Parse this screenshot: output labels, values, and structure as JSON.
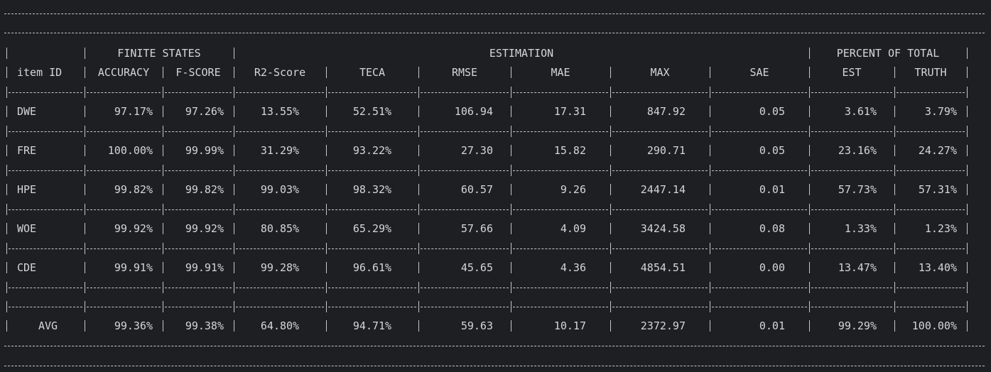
{
  "header_groups": {
    "finite_states": "FINITE STATES",
    "estimation": "ESTIMATION",
    "percent_of_total": "PERCENT OF TOTAL"
  },
  "columns": [
    "item ID",
    "ACCURACY",
    "F-SCORE",
    "R2-Score",
    "TECA",
    "RMSE",
    "MAE",
    "MAX",
    "SAE",
    "EST",
    "TRUTH"
  ],
  "rows": [
    [
      "DWE",
      "97.17%",
      "97.26%",
      "13.55%",
      "52.51%",
      "106.94",
      "17.31",
      "847.92",
      "0.05",
      "3.61%",
      "3.79%"
    ],
    [
      "FRE",
      "100.00%",
      "99.99%",
      "31.29%",
      "93.22%",
      "27.30",
      "15.82",
      "290.71",
      "0.05",
      "23.16%",
      "24.27%"
    ],
    [
      "HPE",
      "99.82%",
      "99.82%",
      "99.03%",
      "98.32%",
      "60.57",
      "9.26",
      "2447.14",
      "0.01",
      "57.73%",
      "57.31%"
    ],
    [
      "WOE",
      "99.92%",
      "99.92%",
      "80.85%",
      "65.29%",
      "57.66",
      "4.09",
      "3424.58",
      "0.08",
      "1.33%",
      "1.23%"
    ],
    [
      "CDE",
      "99.91%",
      "99.91%",
      "99.28%",
      "96.61%",
      "45.65",
      "4.36",
      "4854.51",
      "0.00",
      "13.47%",
      "13.40%"
    ]
  ],
  "avg_row": [
    "AVG",
    "99.36%",
    "99.38%",
    "64.80%",
    "94.71%",
    "59.63",
    "10.17",
    "2372.97",
    "0.01",
    "99.29%",
    "100.00%"
  ]
}
